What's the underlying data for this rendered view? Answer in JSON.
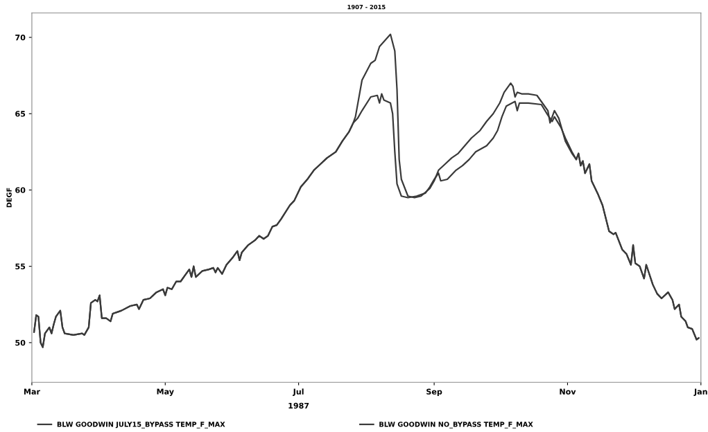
{
  "chart_data": {
    "type": "line",
    "title": "1907 - 2015",
    "xlabel": "1987",
    "ylabel": "DEGF",
    "xlim": [
      "1987-03-01",
      "1988-01-01"
    ],
    "xticks": [
      {
        "value": "1987-03-01",
        "label": "Mar"
      },
      {
        "value": "1987-05-01",
        "label": "May"
      },
      {
        "value": "1987-07-01",
        "label": "Jul"
      },
      {
        "value": "1987-09-01",
        "label": "Sep"
      },
      {
        "value": "1987-11-01",
        "label": "Nov"
      },
      {
        "value": "1988-01-01",
        "label": "Jan"
      }
    ],
    "ylim": [
      47.4,
      71.6
    ],
    "yticks": [
      50,
      55,
      60,
      65,
      70
    ],
    "grid": false,
    "legend": "bottom",
    "marker": "none",
    "line_style": "solid",
    "series": [
      {
        "name": "BLW GOODWIN JULY15_BYPASS TEMP_F_MAX",
        "color": "#3a3a3a",
        "x": [
          "1987-03-02",
          "1987-03-03",
          "1987-03-04",
          "1987-03-05",
          "1987-03-06",
          "1987-03-07",
          "1987-03-09",
          "1987-03-10",
          "1987-03-11",
          "1987-03-12",
          "1987-03-14",
          "1987-03-15",
          "1987-03-16",
          "1987-03-20",
          "1987-03-24",
          "1987-03-25",
          "1987-03-27",
          "1987-03-28",
          "1987-03-30",
          "1987-03-31",
          "1987-04-01",
          "1987-04-02",
          "1987-04-04",
          "1987-04-06",
          "1987-04-07",
          "1987-04-09",
          "1987-04-11",
          "1987-04-15",
          "1987-04-18",
          "1987-04-19",
          "1987-04-21",
          "1987-04-24",
          "1987-04-27",
          "1987-04-30",
          "1987-05-01",
          "1987-05-02",
          "1987-05-04",
          "1987-05-06",
          "1987-05-08",
          "1987-05-10",
          "1987-05-12",
          "1987-05-13",
          "1987-05-14",
          "1987-05-15",
          "1987-05-18",
          "1987-05-21",
          "1987-05-23",
          "1987-05-24",
          "1987-05-25",
          "1987-05-27",
          "1987-05-29",
          "1987-06-01",
          "1987-06-03",
          "1987-06-04",
          "1987-06-05",
          "1987-06-08",
          "1987-06-11",
          "1987-06-13",
          "1987-06-15",
          "1987-06-17",
          "1987-06-19",
          "1987-06-21",
          "1987-06-23",
          "1987-06-27",
          "1987-06-29",
          "1987-07-02",
          "1987-07-05",
          "1987-07-08",
          "1987-07-11",
          "1987-07-14",
          "1987-07-18",
          "1987-07-21",
          "1987-07-24",
          "1987-07-26",
          "1987-07-28",
          "1987-07-30",
          "1987-08-03",
          "1987-08-06",
          "1987-08-07",
          "1987-08-08",
          "1987-08-09",
          "1987-08-12",
          "1987-08-13",
          "1987-08-14",
          "1987-08-15",
          "1987-08-17",
          "1987-08-20",
          "1987-08-24",
          "1987-08-28",
          "1987-08-30",
          "1987-09-01",
          "1987-09-03",
          "1987-09-04",
          "1987-09-07",
          "1987-09-11",
          "1987-09-14",
          "1987-09-17",
          "1987-09-20",
          "1987-09-25",
          "1987-09-28",
          "1987-09-30",
          "1987-10-02",
          "1987-10-04",
          "1987-10-08",
          "1987-10-09",
          "1987-10-10",
          "1987-10-14",
          "1987-10-20",
          "1987-10-23",
          "1987-10-25",
          "1987-10-26",
          "1987-10-29",
          "1987-10-31",
          "1987-11-03",
          "1987-11-05",
          "1987-11-06",
          "1987-11-07",
          "1987-11-08",
          "1987-11-09",
          "1987-11-11",
          "1987-11-12",
          "1987-11-15",
          "1987-11-17",
          "1987-11-20",
          "1987-11-22",
          "1987-11-23",
          "1987-11-26",
          "1987-11-28",
          "1987-11-30",
          "1987-12-01",
          "1987-12-02",
          "1987-12-04",
          "1987-12-06",
          "1987-12-07",
          "1987-12-10",
          "1987-12-12",
          "1987-12-14",
          "1987-12-17",
          "1987-12-19",
          "1987-12-20",
          "1987-12-22",
          "1987-12-23",
          "1987-12-25",
          "1987-12-26",
          "1987-12-28",
          "1987-12-30",
          "1987-12-31"
        ],
        "values": [
          50.7,
          51.8,
          51.7,
          50.0,
          49.7,
          50.6,
          51.0,
          50.6,
          51.2,
          51.7,
          52.1,
          51.0,
          50.6,
          50.5,
          50.6,
          50.5,
          51.0,
          52.6,
          52.8,
          52.7,
          53.1,
          51.6,
          51.6,
          51.4,
          51.9,
          52.0,
          52.1,
          52.4,
          52.5,
          52.2,
          52.8,
          52.9,
          53.3,
          53.5,
          53.1,
          53.6,
          53.5,
          54.0,
          54.0,
          54.4,
          54.8,
          54.3,
          55.0,
          54.3,
          54.7,
          54.8,
          54.9,
          54.6,
          54.9,
          54.5,
          55.1,
          55.6,
          56.0,
          55.4,
          55.9,
          56.4,
          56.7,
          57.0,
          56.8,
          57.0,
          57.6,
          57.7,
          58.1,
          59.0,
          59.3,
          60.2,
          60.7,
          61.3,
          61.7,
          62.1,
          62.5,
          63.2,
          63.8,
          64.4,
          64.7,
          65.2,
          66.1,
          66.2,
          65.7,
          66.3,
          65.9,
          65.7,
          65.0,
          62.5,
          60.4,
          59.6,
          59.5,
          59.6,
          59.8,
          60.2,
          60.7,
          61.1,
          60.6,
          60.7,
          61.3,
          61.6,
          62.0,
          62.5,
          62.9,
          63.4,
          63.9,
          64.8,
          65.5,
          65.8,
          65.2,
          65.7,
          65.7,
          65.6,
          64.9,
          64.5,
          64.8,
          64.1,
          63.4,
          62.5,
          62.0,
          62.4,
          61.6,
          61.9,
          61.1,
          61.7,
          60.6,
          59.7,
          59.0,
          57.3,
          57.1,
          57.2,
          56.1,
          55.8,
          55.1,
          56.4,
          55.2,
          55.0,
          54.2,
          55.1,
          53.8,
          53.2,
          52.9,
          53.3,
          52.8,
          52.2,
          52.5,
          51.7,
          51.4,
          51.0,
          50.9,
          50.2,
          50.3
        ]
      },
      {
        "name": "BLW GOODWIN NO_BYPASS TEMP_F_MAX",
        "color": "#3a3a3a",
        "x": [
          "1987-03-02",
          "1987-03-03",
          "1987-03-04",
          "1987-03-05",
          "1987-03-06",
          "1987-03-07",
          "1987-03-09",
          "1987-03-10",
          "1987-03-11",
          "1987-03-12",
          "1987-03-14",
          "1987-03-15",
          "1987-03-16",
          "1987-03-20",
          "1987-03-24",
          "1987-03-25",
          "1987-03-27",
          "1987-03-28",
          "1987-03-30",
          "1987-03-31",
          "1987-04-01",
          "1987-04-02",
          "1987-04-04",
          "1987-04-06",
          "1987-04-07",
          "1987-04-09",
          "1987-04-11",
          "1987-04-15",
          "1987-04-18",
          "1987-04-19",
          "1987-04-21",
          "1987-04-24",
          "1987-04-27",
          "1987-04-30",
          "1987-05-01",
          "1987-05-02",
          "1987-05-04",
          "1987-05-06",
          "1987-05-08",
          "1987-05-10",
          "1987-05-12",
          "1987-05-13",
          "1987-05-14",
          "1987-05-15",
          "1987-05-18",
          "1987-05-21",
          "1987-05-23",
          "1987-05-24",
          "1987-05-25",
          "1987-05-27",
          "1987-05-29",
          "1987-06-01",
          "1987-06-03",
          "1987-06-04",
          "1987-06-05",
          "1987-06-08",
          "1987-06-11",
          "1987-06-13",
          "1987-06-15",
          "1987-06-17",
          "1987-06-19",
          "1987-06-21",
          "1987-06-23",
          "1987-06-27",
          "1987-06-29",
          "1987-07-02",
          "1987-07-05",
          "1987-07-08",
          "1987-07-11",
          "1987-07-14",
          "1987-07-18",
          "1987-07-21",
          "1987-07-24",
          "1987-07-26",
          "1987-07-27",
          "1987-07-29",
          "1987-07-30",
          "1987-08-03",
          "1987-08-05",
          "1987-08-07",
          "1987-08-12",
          "1987-08-14",
          "1987-08-15",
          "1987-08-16",
          "1987-08-17",
          "1987-08-20",
          "1987-08-23",
          "1987-08-26",
          "1987-08-30",
          "1987-09-01",
          "1987-09-03",
          "1987-09-06",
          "1987-09-09",
          "1987-09-12",
          "1987-09-15",
          "1987-09-18",
          "1987-09-22",
          "1987-09-25",
          "1987-09-28",
          "1987-10-01",
          "1987-10-03",
          "1987-10-06",
          "1987-10-07",
          "1987-10-08",
          "1987-10-09",
          "1987-10-11",
          "1987-10-14",
          "1987-10-18",
          "1987-10-21",
          "1987-10-23",
          "1987-10-24",
          "1987-10-26",
          "1987-10-28",
          "1987-10-31",
          "1987-11-03",
          "1987-11-05",
          "1987-11-06",
          "1987-11-07",
          "1987-11-08",
          "1987-11-09",
          "1987-11-11",
          "1987-11-12",
          "1987-11-15",
          "1987-11-17",
          "1987-11-20",
          "1987-11-22",
          "1987-11-23",
          "1987-11-26",
          "1987-11-28",
          "1987-11-30",
          "1987-12-01",
          "1987-12-02",
          "1987-12-04",
          "1987-12-06",
          "1987-12-07",
          "1987-12-10",
          "1987-12-12",
          "1987-12-14",
          "1987-12-17",
          "1987-12-19",
          "1987-12-20",
          "1987-12-22",
          "1987-12-23",
          "1987-12-25",
          "1987-12-26",
          "1987-12-28",
          "1987-12-30",
          "1987-12-31"
        ],
        "values": [
          50.7,
          51.8,
          51.7,
          50.0,
          49.7,
          50.6,
          51.0,
          50.6,
          51.2,
          51.7,
          52.1,
          51.0,
          50.6,
          50.5,
          50.6,
          50.5,
          51.0,
          52.6,
          52.8,
          52.7,
          53.1,
          51.6,
          51.6,
          51.4,
          51.9,
          52.0,
          52.1,
          52.4,
          52.5,
          52.2,
          52.8,
          52.9,
          53.3,
          53.5,
          53.1,
          53.6,
          53.5,
          54.0,
          54.0,
          54.4,
          54.8,
          54.3,
          55.0,
          54.3,
          54.7,
          54.8,
          54.9,
          54.6,
          54.9,
          54.5,
          55.1,
          55.6,
          56.0,
          55.4,
          55.9,
          56.4,
          56.7,
          57.0,
          56.8,
          57.0,
          57.6,
          57.7,
          58.1,
          59.0,
          59.3,
          60.2,
          60.7,
          61.3,
          61.7,
          62.1,
          62.5,
          63.2,
          63.8,
          64.4,
          64.8,
          66.4,
          67.2,
          68.3,
          68.5,
          69.4,
          70.2,
          69.1,
          66.6,
          62.0,
          60.7,
          59.6,
          59.5,
          59.6,
          60.1,
          60.6,
          61.3,
          61.7,
          62.1,
          62.4,
          62.9,
          63.4,
          63.9,
          64.5,
          65.0,
          65.7,
          66.4,
          67.0,
          66.8,
          66.1,
          66.4,
          66.3,
          66.3,
          66.2,
          65.6,
          65.2,
          64.4,
          65.2,
          64.7,
          63.2,
          62.4,
          62.0,
          62.4,
          61.6,
          61.9,
          61.1,
          61.7,
          60.6,
          59.7,
          59.0,
          57.3,
          57.1,
          57.2,
          56.1,
          55.8,
          55.1,
          56.4,
          55.2,
          55.0,
          54.2,
          55.1,
          53.8,
          53.2,
          52.9,
          53.3,
          52.8,
          52.2,
          52.5,
          51.7,
          51.4,
          51.0,
          50.9,
          50.2,
          50.3
        ]
      }
    ]
  }
}
